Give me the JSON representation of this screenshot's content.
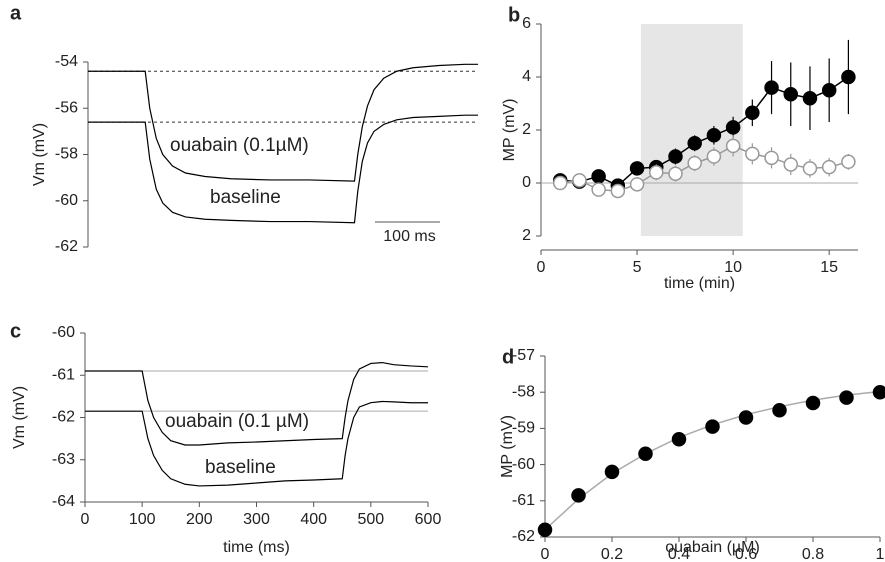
{
  "chart_data": [
    {
      "type": "line",
      "panel": "a",
      "ylabel": "Vm (mV)",
      "x": [
        0,
        88,
        95,
        105,
        115,
        130,
        150,
        180,
        220,
        280,
        340,
        410,
        415,
        422,
        430,
        440,
        455,
        475,
        500,
        540,
        580,
        600
      ],
      "series": [
        {
          "name": "ouabain (0.1µM)",
          "color": "#000000",
          "values": [
            -54.4,
            -54.4,
            -56.0,
            -57.3,
            -58.0,
            -58.5,
            -58.8,
            -58.95,
            -59.05,
            -59.1,
            -59.1,
            -59.15,
            -58.0,
            -56.8,
            -55.9,
            -55.2,
            -54.7,
            -54.4,
            -54.25,
            -54.15,
            -54.1,
            -54.1
          ]
        },
        {
          "name": "baseline",
          "color": "#000000",
          "values": [
            -56.6,
            -56.6,
            -58.2,
            -59.5,
            -60.1,
            -60.5,
            -60.7,
            -60.8,
            -60.85,
            -60.9,
            -60.9,
            -60.95,
            -59.6,
            -58.3,
            -57.5,
            -57.0,
            -56.7,
            -56.5,
            -56.4,
            -56.35,
            -56.3,
            -56.3
          ]
        }
      ],
      "xlim": [
        0,
        600
      ],
      "ylim": [
        -62,
        -54
      ],
      "yticks": [
        -62,
        -60,
        -58,
        -56,
        -54
      ],
      "hlines": [
        -54.4,
        -56.6
      ],
      "hline_style": "dashed",
      "scale_bar": {
        "value": 100,
        "label": "100 ms"
      }
    },
    {
      "type": "scatter",
      "panel": "b",
      "ylabel": "MP (mV)",
      "xlabel": "time (min)",
      "x": [
        1,
        2,
        3,
        4,
        5,
        6,
        7,
        8,
        9,
        10,
        11,
        12,
        13,
        14,
        15,
        16
      ],
      "series": [
        {
          "color": "#000000",
          "fill": "#000000",
          "values": [
            0.1,
            0.05,
            0.25,
            -0.1,
            0.55,
            0.6,
            1.0,
            1.5,
            1.8,
            2.1,
            2.65,
            3.6,
            3.35,
            3.2,
            3.5,
            4.0
          ],
          "errors": [
            0.2,
            0.2,
            0.2,
            0.2,
            0.25,
            0.25,
            0.3,
            0.3,
            0.35,
            0.4,
            0.5,
            1.0,
            1.2,
            1.2,
            1.2,
            1.4
          ]
        },
        {
          "color": "#999999",
          "fill": "#ffffff",
          "values": [
            0,
            0.1,
            -0.25,
            -0.3,
            -0.05,
            0.4,
            0.35,
            0.75,
            1.0,
            1.4,
            1.1,
            0.95,
            0.7,
            0.55,
            0.6,
            0.8
          ],
          "errors": [
            0.2,
            0.2,
            0.25,
            0.25,
            0.25,
            0.3,
            0.3,
            0.3,
            0.35,
            0.4,
            0.4,
            0.4,
            0.4,
            0.35,
            0.35,
            0.3
          ]
        }
      ],
      "xlim": [
        0,
        16.5
      ],
      "xticks": [
        0,
        5,
        10,
        15
      ],
      "ylim": [
        -2,
        6
      ],
      "yticks": [
        {
          "value": -2,
          "label": "2"
        },
        0,
        2,
        4,
        6
      ],
      "shade": [
        5.2,
        10.5
      ],
      "hlines": [
        0
      ],
      "hline_style": "solid"
    },
    {
      "type": "line",
      "panel": "c",
      "ylabel": "Vm (mV)",
      "xlabel": "time (ms)",
      "x": [
        0,
        100,
        110,
        120,
        135,
        150,
        175,
        200,
        250,
        300,
        350,
        400,
        450,
        455,
        460,
        470,
        480,
        500,
        520,
        540,
        570,
        600
      ],
      "series": [
        {
          "name": "ouabain (0.1 µM)",
          "color": "#000000",
          "values": [
            -60.9,
            -60.9,
            -61.6,
            -62.0,
            -62.35,
            -62.55,
            -62.65,
            -62.65,
            -62.6,
            -62.58,
            -62.55,
            -62.52,
            -62.5,
            -62.0,
            -61.6,
            -61.1,
            -60.85,
            -60.72,
            -60.7,
            -60.75,
            -60.78,
            -60.8
          ]
        },
        {
          "name": "baseline",
          "color": "#000000",
          "values": [
            -61.85,
            -61.85,
            -62.5,
            -62.9,
            -63.25,
            -63.45,
            -63.58,
            -63.62,
            -63.6,
            -63.55,
            -63.5,
            -63.48,
            -63.45,
            -62.9,
            -62.5,
            -62.0,
            -61.75,
            -61.65,
            -61.62,
            -61.63,
            -61.65,
            -61.65
          ]
        }
      ],
      "xlim": [
        0,
        600
      ],
      "xticks": [
        0,
        100,
        200,
        300,
        400,
        500,
        600
      ],
      "ylim": [
        -64,
        -60
      ],
      "yticks": [
        -64,
        -63,
        -62,
        -61,
        -60
      ],
      "hlines": [
        -60.9,
        -61.85
      ],
      "hline_style": "solid"
    },
    {
      "type": "scatter",
      "panel": "d",
      "ylabel": "MP (mV)",
      "xlabel": "ouabain (µM)",
      "x": [
        0,
        0.1,
        0.2,
        0.3,
        0.4,
        0.5,
        0.6,
        0.7,
        0.8,
        0.9,
        1
      ],
      "series": [
        {
          "color": "#000000",
          "fill": "#000000",
          "values": [
            -61.8,
            -60.85,
            -60.2,
            -59.7,
            -59.3,
            -58.95,
            -58.7,
            -58.5,
            -58.3,
            -58.15,
            -58.0
          ]
        }
      ],
      "fit": {
        "color": "#aaaaaa",
        "values": [
          -61.8,
          -60.95,
          -60.25,
          -59.7,
          -59.25,
          -58.9,
          -58.62,
          -58.4,
          -58.22,
          -58.08,
          -57.98
        ]
      },
      "xlim": [
        0,
        1
      ],
      "xticks": [
        0,
        0.2,
        0.4,
        0.6,
        0.8,
        1
      ],
      "ylim": [
        -62,
        -57
      ],
      "yticks": [
        -62,
        -61,
        -60,
        -59,
        -58,
        -57
      ]
    }
  ]
}
